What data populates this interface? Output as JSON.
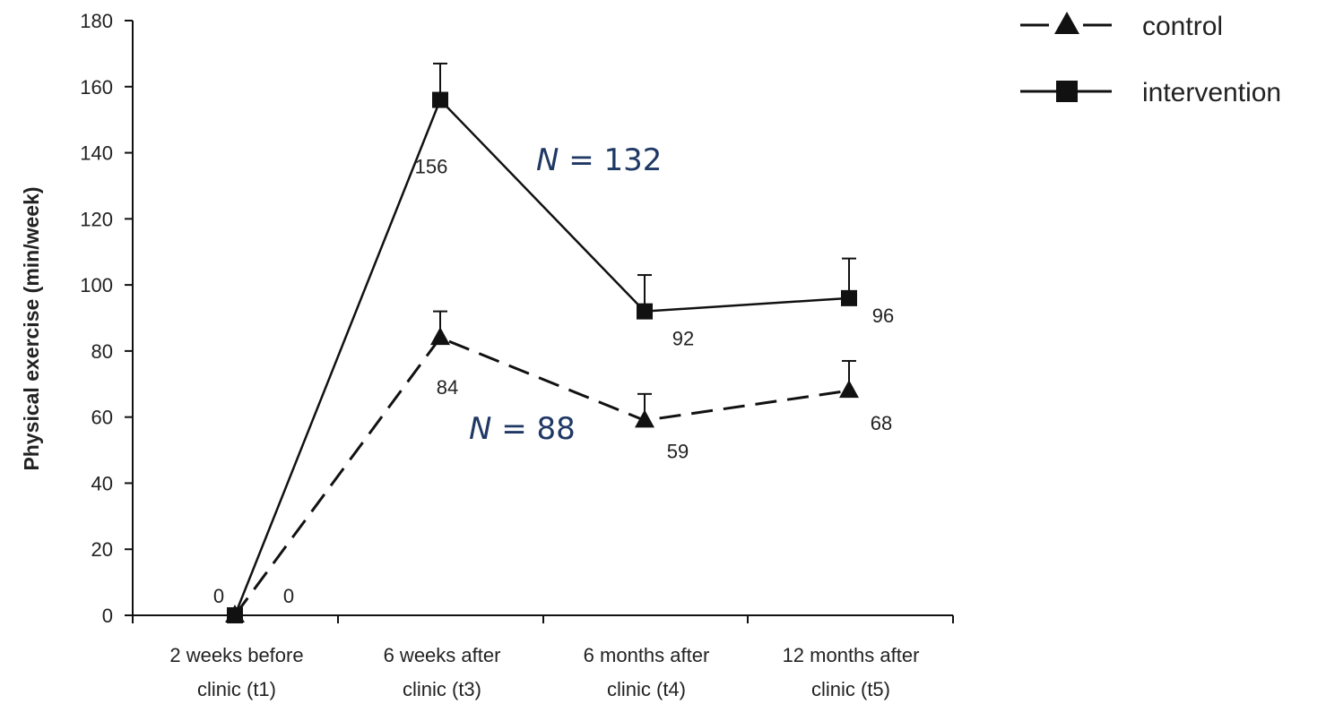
{
  "chart_data": {
    "type": "line",
    "title": "",
    "ylabel": "Physical exercise (min/week)",
    "xlabel": "",
    "ylim": [
      0,
      180
    ],
    "yticks": [
      0,
      20,
      40,
      60,
      80,
      100,
      120,
      140,
      160,
      180
    ],
    "categories": [
      [
        "2 weeks before",
        "clinic (t1)"
      ],
      [
        "6 weeks after",
        "clinic (t3)"
      ],
      [
        "6 months after",
        "clinic (t4)"
      ],
      [
        "12 months after",
        "clinic (t5)"
      ]
    ],
    "legend_position": "top-right",
    "grid": false,
    "series": [
      {
        "name": "control",
        "marker": "triangle",
        "line": "dashed",
        "values": [
          0,
          84,
          59,
          68
        ],
        "labels": [
          "0",
          "84",
          "59",
          "68"
        ],
        "error_upper": [
          0,
          92,
          67,
          77
        ]
      },
      {
        "name": "intervention",
        "marker": "square",
        "line": "solid",
        "values": [
          0,
          156,
          92,
          96
        ],
        "labels": [
          "0",
          "156",
          "92",
          "96"
        ],
        "error_upper": [
          0,
          167,
          103,
          108
        ]
      }
    ],
    "annotations": [
      {
        "italic": "N",
        "rest": " = 132",
        "series": "intervention",
        "color": "#1f3864"
      },
      {
        "italic": "N",
        "rest": " = 88",
        "series": "control",
        "color": "#1f3864"
      }
    ]
  }
}
